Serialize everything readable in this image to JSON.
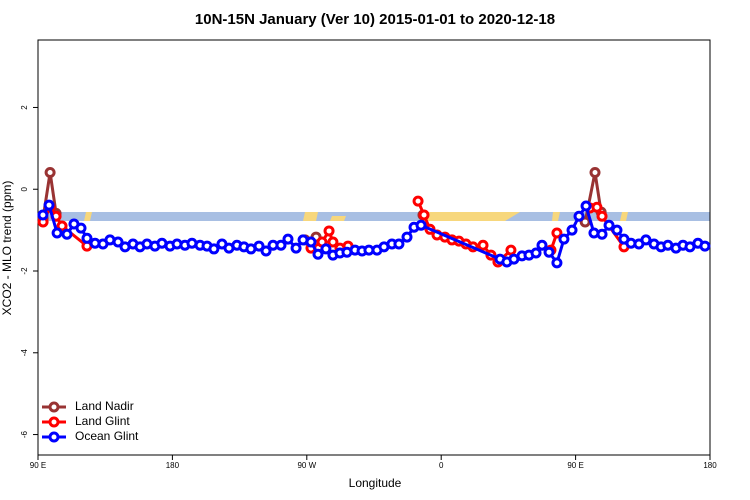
{
  "chart_data": {
    "type": "line",
    "title": "10N-15N January (Ver 10)   2015-01-01 to 2020-12-18",
    "x_label": "Longitude",
    "y_label": "XCO2 - MLO trend (ppm)",
    "xlim": [
      90,
      540
    ],
    "ylim": [
      -6.5,
      3.65
    ],
    "xticks": [
      {
        "value": 90,
        "label": "90 E"
      },
      180,
      {
        "value": 270,
        "label": "90 W"
      },
      {
        "value": 360,
        "label": "0"
      },
      {
        "value": 450,
        "label": "90 E"
      },
      {
        "value": 540,
        "label": "180"
      }
    ],
    "yticks": [
      2,
      0,
      -2,
      -4,
      -6
    ],
    "legend": "bottom-left",
    "series": [
      {
        "name": "Land Nadir",
        "color": "#993333",
        "x": [
          93.4,
          98.1,
          102.1,
          180,
          268.8,
          276.2,
          300,
          347.8,
          400,
          456.4,
          463.0,
          467.1
        ],
        "values": [
          -0.71,
          0.41,
          -0.59,
          null,
          -1.24,
          -1.17,
          null,
          -0.63,
          null,
          -0.8,
          0.41,
          -0.56
        ]
      },
      {
        "name": "Land Glint",
        "color": "#ff0000",
        "x": [
          93.4,
          98.1,
          102.1,
          106.1,
          122.8,
          200,
          272.8,
          280.2,
          284.9,
          287.5,
          292.2,
          297.6,
          320,
          344.5,
          348.5,
          352.5,
          357.2,
          362.5,
          367.2,
          371.9,
          376.6,
          381.3,
          388.0,
          393.3,
          398.0,
          406.7,
          420,
          433.5,
          437.5,
          450,
          459.6,
          464.3,
          467.7,
          482.4
        ],
        "values": [
          -0.8,
          -0.44,
          -0.66,
          -0.9,
          -1.39,
          null,
          -1.44,
          -1.29,
          -1.02,
          -1.29,
          -1.44,
          -1.39,
          null,
          -0.29,
          -0.63,
          -0.98,
          -1.12,
          -1.17,
          -1.24,
          -1.27,
          -1.34,
          -1.41,
          -1.37,
          -1.61,
          -1.78,
          -1.49,
          null,
          -1.49,
          -1.07,
          null,
          -0.46,
          -0.44,
          -0.66,
          -1.41
        ]
      },
      {
        "name": "Ocean Glint",
        "color": "#0000ff",
        "x": [
          93.3,
          97.4,
          102.8,
          109.4,
          114.1,
          118.8,
          122.8,
          128.2,
          133.5,
          138.2,
          143.6,
          148.3,
          153.6,
          158.3,
          163.0,
          168.3,
          173.0,
          178.4,
          183.1,
          188.4,
          193.1,
          198.5,
          203.2,
          207.8,
          213.2,
          217.9,
          223.2,
          227.9,
          232.6,
          238.0,
          242.7,
          247.4,
          252.7,
          257.4,
          262.8,
          267.5,
          272.8,
          277.5,
          282.8,
          287.5,
          292.2,
          296.9,
          302.3,
          307.0,
          311.6,
          317.0,
          321.7,
          327.0,
          331.7,
          337.1,
          341.8,
          346.5,
          399.4,
          404.0,
          408.7,
          414.1,
          418.8,
          423.5,
          427.5,
          432.2,
          437.5,
          442.2,
          447.6,
          452.3,
          457.0,
          462.3,
          467.7,
          472.4,
          477.7,
          482.4,
          487.1,
          492.4,
          497.1,
          502.5,
          507.2,
          511.8,
          517.2,
          521.9,
          526.6,
          531.9,
          536.6
        ],
        "values": [
          -0.63,
          -0.39,
          -1.07,
          -1.1,
          -0.85,
          -0.95,
          -1.2,
          -1.32,
          -1.34,
          -1.24,
          -1.29,
          -1.41,
          -1.34,
          -1.41,
          -1.34,
          -1.39,
          -1.32,
          -1.39,
          -1.34,
          -1.37,
          -1.32,
          -1.37,
          -1.39,
          -1.46,
          -1.34,
          -1.44,
          -1.37,
          -1.41,
          -1.46,
          -1.39,
          -1.51,
          -1.37,
          -1.37,
          -1.22,
          -1.44,
          -1.24,
          -1.29,
          -1.59,
          -1.46,
          -1.61,
          -1.56,
          -1.54,
          -1.49,
          -1.51,
          -1.49,
          -1.49,
          -1.41,
          -1.34,
          -1.34,
          -1.17,
          -0.93,
          -0.88,
          -1.71,
          -1.78,
          -1.71,
          -1.63,
          -1.61,
          -1.56,
          -1.37,
          -1.54,
          -1.8,
          -1.22,
          -1.0,
          -0.66,
          -0.41,
          -1.07,
          -1.1,
          -0.88,
          -1.0,
          -1.22,
          -1.32,
          -1.34,
          -1.24,
          -1.34,
          -1.41,
          -1.37,
          -1.44,
          -1.37,
          -1.41,
          -1.32,
          -1.39
        ]
      }
    ]
  }
}
